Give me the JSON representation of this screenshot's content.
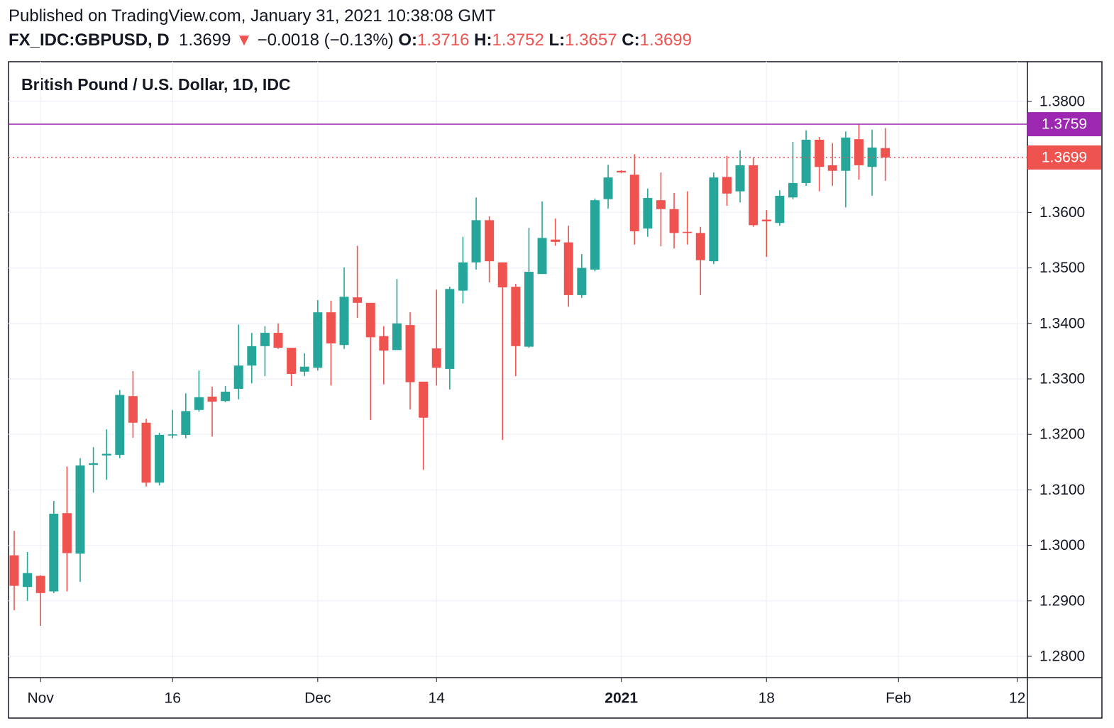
{
  "header": {
    "published": "Published on TradingView.com, January 31, 2021 10:38:08 GMT",
    "symbol": "FX_IDC:GBPUSD, D",
    "last": "1.3699",
    "arrow": "▼",
    "change": "−0.0018 (−0.13%)",
    "ohlc": [
      {
        "label": "O:",
        "value": "1.3716"
      },
      {
        "label": "H:",
        "value": "1.3752"
      },
      {
        "label": "L:",
        "value": "1.3657"
      },
      {
        "label": "C:",
        "value": "1.3699"
      }
    ]
  },
  "chart_data": {
    "type": "candlestick",
    "title": "British Pound / U.S. Dollar, 1D, IDC",
    "up_color": "#26a69a",
    "down_color": "#ef5350",
    "grid": true,
    "xlim": [
      -0.43,
      76.77
    ],
    "ylim": [
      1.27616,
      1.38716
    ],
    "xticks": [
      {
        "value": 2,
        "label": "Nov"
      },
      {
        "value": 12,
        "label": "16"
      },
      {
        "value": 23,
        "label": "Dec"
      },
      {
        "value": 32,
        "label": "14"
      },
      {
        "value": 46,
        "label": "2021",
        "bold": true
      },
      {
        "value": 57,
        "label": "18"
      },
      {
        "value": 67,
        "label": "Feb"
      },
      {
        "value": 76,
        "label": "12"
      }
    ],
    "yticks": [
      {
        "value": 1.28,
        "label": "1.2800"
      },
      {
        "value": 1.29,
        "label": "1.2900"
      },
      {
        "value": 1.3,
        "label": "1.3000"
      },
      {
        "value": 1.31,
        "label": "1.3100"
      },
      {
        "value": 1.32,
        "label": "1.3200"
      },
      {
        "value": 1.33,
        "label": "1.3300"
      },
      {
        "value": 1.34,
        "label": "1.3400"
      },
      {
        "value": 1.35,
        "label": "1.3500"
      },
      {
        "value": 1.36,
        "label": "1.3600"
      },
      {
        "value": 1.37,
        "label": "1.3700"
      },
      {
        "value": 1.38,
        "label": "1.3800"
      }
    ],
    "hlines": [
      {
        "value": 1.3759,
        "color": "#9c27b0",
        "style": "solid"
      },
      {
        "value": 1.3699,
        "color": "#ef5350",
        "style": "dotted"
      }
    ],
    "x": [
      0,
      1,
      2,
      3,
      4,
      5,
      6,
      7,
      8,
      9,
      10,
      11,
      12,
      13,
      14,
      15,
      16,
      17,
      18,
      19,
      20,
      21,
      22,
      23,
      24,
      25,
      26,
      27,
      28,
      29,
      30,
      31,
      32,
      33,
      34,
      35,
      36,
      37,
      38,
      39,
      40,
      41,
      42,
      43,
      44,
      45,
      46,
      47,
      48,
      49,
      50,
      51,
      52,
      53,
      54,
      55,
      56,
      57,
      58,
      59,
      60,
      61,
      62,
      63,
      64,
      65,
      66
    ],
    "open": [
      1.2982,
      1.2925,
      1.2945,
      1.2917,
      1.3058,
      1.2985,
      1.3145,
      1.3162,
      1.3163,
      1.3269,
      1.3221,
      1.3113,
      1.3198,
      1.3199,
      1.3244,
      1.3268,
      1.326,
      1.3282,
      1.3324,
      1.3359,
      1.3383,
      1.3356,
      1.3313,
      1.332,
      1.342,
      1.3361,
      1.3447,
      1.3437,
      1.3377,
      1.3352,
      1.3397,
      1.3295,
      1.3355,
      1.3318,
      1.3459,
      1.351,
      1.3586,
      1.351,
      1.3466,
      1.3358,
      1.3489,
      1.3551,
      1.3546,
      1.3451,
      1.3497,
      1.3624,
      1.3675,
      1.3668,
      1.3571,
      1.3622,
      1.3606,
      1.3565,
      1.3563,
      1.3512,
      1.3664,
      1.3638,
      1.3685,
      1.3587,
      1.3581,
      1.3627,
      1.3653,
      1.3731,
      1.3685,
      1.3675,
      1.3732,
      1.3682,
      1.3716
    ],
    "high": [
      1.3026,
      1.2988,
      1.2946,
      1.308,
      1.3142,
      1.3157,
      1.3177,
      1.3209,
      1.328,
      1.3314,
      1.3228,
      1.3203,
      1.3244,
      1.3274,
      1.3315,
      1.3286,
      1.3287,
      1.3398,
      1.3383,
      1.3395,
      1.34,
      1.3356,
      1.3346,
      1.3442,
      1.3441,
      1.3501,
      1.354,
      1.3437,
      1.3395,
      1.348,
      1.342,
      1.3295,
      1.3461,
      1.3466,
      1.3556,
      1.3627,
      1.3593,
      1.351,
      1.3471,
      1.3572,
      1.362,
      1.3589,
      1.3576,
      1.3525,
      1.3625,
      1.3686,
      1.3676,
      1.3705,
      1.3643,
      1.3672,
      1.3635,
      1.3638,
      1.3574,
      1.3672,
      1.3702,
      1.3712,
      1.3699,
      1.3604,
      1.364,
      1.3727,
      1.3748,
      1.3736,
      1.3725,
      1.3746,
      1.3759,
      1.3749,
      1.3752
    ],
    "low": [
      1.2883,
      1.29,
      1.2855,
      1.2914,
      1.2917,
      1.2934,
      1.3095,
      1.3118,
      1.3157,
      1.3194,
      1.3106,
      1.3108,
      1.3193,
      1.3193,
      1.3241,
      1.3196,
      1.3258,
      1.3263,
      1.3292,
      1.3305,
      1.3354,
      1.3287,
      1.3305,
      1.3315,
      1.3288,
      1.3354,
      1.341,
      1.3226,
      1.329,
      1.3352,
      1.3245,
      1.3136,
      1.3288,
      1.3281,
      1.3436,
      1.3497,
      1.3474,
      1.319,
      1.3305,
      1.3356,
      1.3489,
      1.354,
      1.343,
      1.3446,
      1.3494,
      1.3607,
      1.3671,
      1.3542,
      1.3556,
      1.3539,
      1.3535,
      1.3542,
      1.3451,
      1.3507,
      1.3612,
      1.3618,
      1.3574,
      1.352,
      1.3576,
      1.3624,
      1.3648,
      1.3638,
      1.3648,
      1.3609,
      1.3659,
      1.363,
      1.3657
    ],
    "close": [
      1.2927,
      1.295,
      1.2914,
      1.3057,
      1.2986,
      1.3144,
      1.3148,
      1.3165,
      1.3271,
      1.3221,
      1.3113,
      1.3199,
      1.32,
      1.3242,
      1.3267,
      1.3259,
      1.3277,
      1.3324,
      1.3359,
      1.3383,
      1.3356,
      1.3309,
      1.3322,
      1.342,
      1.3364,
      1.3448,
      1.3437,
      1.3375,
      1.3351,
      1.34,
      1.3294,
      1.323,
      1.332,
      1.3462,
      1.351,
      1.3586,
      1.3512,
      1.3465,
      1.3359,
      1.3493,
      1.3554,
      1.3547,
      1.3451,
      1.35,
      1.3622,
      1.3663,
      1.3672,
      1.3566,
      1.3626,
      1.3606,
      1.3563,
      1.3563,
      1.3514,
      1.3663,
      1.3634,
      1.3685,
      1.3577,
      1.3584,
      1.363,
      1.3653,
      1.3731,
      1.3682,
      1.3675,
      1.3735,
      1.3685,
      1.3717,
      1.3699
    ]
  }
}
